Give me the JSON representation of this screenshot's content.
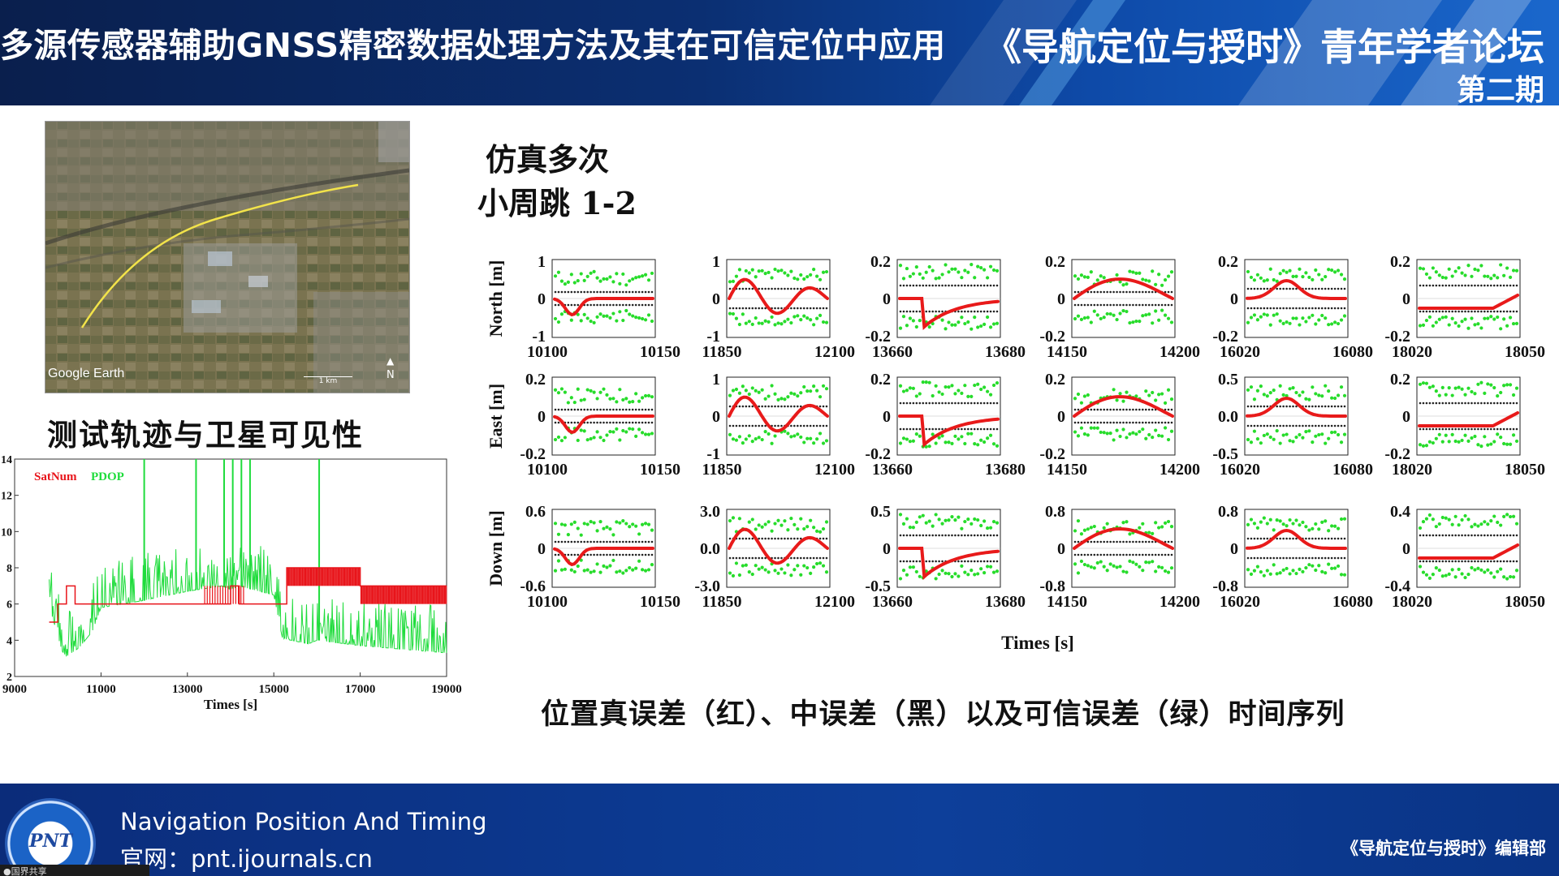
{
  "header": {
    "title": "多源传感器辅助GNSS精密数据处理方法及其在可信定位中应用",
    "forum": "《导航定位与授时》青年学者论坛",
    "issue": "第二期"
  },
  "left": {
    "map_watermark": "Google Earth",
    "map_scale": "1 km",
    "map_north": "N",
    "caption": "测试轨迹与卫星可见性"
  },
  "chart_data": [
    {
      "type": "line",
      "legend": [
        "SatNum",
        "PDOP"
      ],
      "colors": {
        "SatNum": "#e8141a",
        "PDOP": "#1fdc3c"
      },
      "xlabel": "Times [s]",
      "xlim": [
        9000,
        19000
      ],
      "ylim": [
        2,
        14
      ],
      "xticks": [
        9000,
        11000,
        13000,
        15000,
        17000,
        19000
      ],
      "yticks": [
        2,
        4,
        6,
        8,
        10,
        12,
        14
      ],
      "series": [
        {
          "name": "SatNum",
          "x": [
            9800,
            10000,
            10200,
            10400,
            10500,
            11000,
            12000,
            13000,
            13500,
            14000,
            14200,
            14500,
            15000,
            15300,
            16000,
            17000,
            18000,
            18500,
            19000
          ],
          "values": [
            5,
            6,
            7,
            6,
            6,
            6,
            6,
            6,
            6,
            7,
            6,
            6,
            6,
            8,
            8,
            7,
            7,
            7,
            7
          ]
        },
        {
          "name": "PDOP",
          "x": [
            9800,
            10100,
            10200,
            10500,
            10800,
            11000,
            12000,
            13000,
            13800,
            14000,
            14200,
            14500,
            15000,
            15200,
            15800,
            16000,
            17000,
            18000,
            18500,
            19000
          ],
          "values": [
            5.9,
            3.4,
            3.1,
            3.6,
            4.5,
            5.8,
            6.2,
            6.7,
            7.0,
            6.8,
            7.0,
            6.8,
            6.5,
            4.1,
            3.8,
            4.0,
            3.7,
            3.5,
            3.4,
            3.3
          ]
        }
      ]
    },
    {
      "type": "scatter",
      "title_lines": [
        "仿真多次",
        "小周跳 1-2"
      ],
      "xlabel": "Times [s]",
      "row_labels": [
        "North [m]",
        "East [m]",
        "Down [m]"
      ],
      "legend_caption": "位置真误差（红）、中误差（黑）以及可信误差（绿）时间序列",
      "colors": {
        "true_error": "#e81a1a",
        "std": "#222222",
        "trusted": "#27dc2b"
      },
      "columns": [
        {
          "xlim": [
            10100,
            10150
          ],
          "xticks": [
            "10100",
            "10150"
          ]
        },
        {
          "xlim": [
            11850,
            12100
          ],
          "xticks": [
            "11850",
            "12100"
          ]
        },
        {
          "xlim": [
            13660,
            13680
          ],
          "xticks": [
            "13660",
            "13680"
          ]
        },
        {
          "xlim": [
            14150,
            14200
          ],
          "xticks": [
            "14150",
            "14200"
          ]
        },
        {
          "xlim": [
            16020,
            16080
          ],
          "xticks": [
            "16020",
            "16080"
          ]
        },
        {
          "xlim": [
            18020,
            18050
          ],
          "xticks": [
            "18020",
            "18050"
          ]
        }
      ],
      "yticks": [
        [
          [
            "1",
            "0",
            "-1"
          ],
          [
            "1",
            "0",
            "-1"
          ],
          [
            "0.2",
            "0",
            "-0.2"
          ],
          [
            "0.2",
            "0",
            "-0.2"
          ],
          [
            "0.2",
            "0",
            "-0.2"
          ],
          [
            "0.2",
            "0",
            "-0.2"
          ]
        ],
        [
          [
            "0.2",
            "0",
            "-0.2"
          ],
          [
            "1",
            "0",
            "-1"
          ],
          [
            "0.2",
            "0",
            "-0.2"
          ],
          [
            "0.2",
            "0",
            "-0.2"
          ],
          [
            "0.5",
            "0.0",
            "-0.5"
          ],
          [
            "0.2",
            "0",
            "-0.2"
          ]
        ],
        [
          [
            "0.6",
            "0",
            "-0.6"
          ],
          [
            "3.0",
            "0.0",
            "-3.0"
          ],
          [
            "0.5",
            "0",
            "-0.5"
          ],
          [
            "0.8",
            "0",
            "-0.8"
          ],
          [
            "0.8",
            "0",
            "-0.8"
          ],
          [
            "0.4",
            "0",
            "-0.4"
          ]
        ]
      ]
    }
  ],
  "footer": {
    "journal_en": "Navigation Position And Timing",
    "website": "官网：pnt.ijournals.cn",
    "dept": "《导航定位与授时》编辑部",
    "logo_text": "PNT",
    "taskbar": "●国界共享"
  }
}
